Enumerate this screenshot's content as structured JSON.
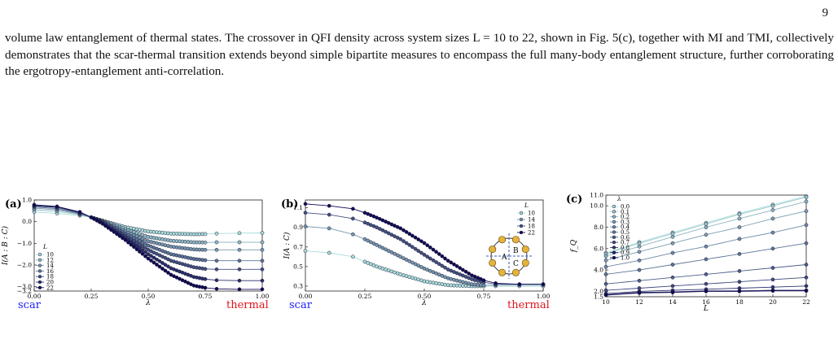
{
  "page_number": "9",
  "paragraph": "volume law entanglement of thermal states. The crossover in QFI density across system sizes L = 10 to 22, shown in Fig. 5(c), together with MI and TMI, collectively demonstrates that the scar-thermal transition extends beyond simple bipartite measures to encompass the full many-body entanglement structure, further corroborating the ergotropy-entanglement anti-correlation.",
  "colors": {
    "scar": "#1a1aff",
    "thermal": "#e0151c",
    "series_light": "#a9ddd9",
    "series_dark": "#100a52"
  },
  "panel_a": {
    "label": "(a)",
    "ylabel": "I(A : B : C)",
    "xlabel": "λ",
    "left_text": "scar",
    "right_text": "thermal",
    "legend_title": "L",
    "yticks": [
      "1.0",
      "0.0",
      "−1.0",
      "−2.0",
      "−3.0",
      "−3.2"
    ],
    "xticks": [
      "0.00",
      "0.25",
      "0.50",
      "0.75",
      "1.00"
    ]
  },
  "panel_b": {
    "label": "(b)",
    "ylabel": "I(A : C)",
    "xlabel": "λ",
    "left_text": "scar",
    "right_text": "thermal",
    "legend_title": "L",
    "yticks": [
      "1.1",
      "0.9",
      "0.7",
      "0.5",
      "0.3"
    ],
    "xticks": [
      "0.00",
      "0.25",
      "0.50",
      "0.75",
      "1.00"
    ],
    "inset_labels": [
      "A",
      "B",
      "C"
    ]
  },
  "panel_c": {
    "label": "(c)",
    "ylabel": "f_Q",
    "xlabel": "L",
    "legend_title": "λ",
    "yticks": [
      "11.0",
      "10.0",
      "8.0",
      "6.0",
      "4.0",
      "2.0",
      "1.5"
    ],
    "xticks": [
      "10",
      "12",
      "14",
      "16",
      "18",
      "20",
      "22"
    ]
  },
  "chart_data": [
    {
      "type": "line",
      "panel": "a",
      "xlabel": "λ",
      "ylabel": "I(A : B : C)",
      "xlim": [
        0,
        1
      ],
      "ylim": [
        -3.2,
        1.0
      ],
      "legend_title": "L",
      "legend_position": "bottom-left",
      "series": [
        {
          "name": "10",
          "x": [
            0,
            0.1,
            0.2,
            0.25,
            0.3,
            0.4,
            0.5,
            0.6,
            0.7,
            0.75,
            0.8,
            0.9,
            1.0
          ],
          "values": [
            0.45,
            0.38,
            0.28,
            0.2,
            0.05,
            -0.25,
            -0.45,
            -0.55,
            -0.58,
            -0.57,
            -0.55,
            -0.53,
            -0.52
          ]
        },
        {
          "name": "12",
          "x": [
            0,
            0.1,
            0.2,
            0.25,
            0.3,
            0.4,
            0.5,
            0.6,
            0.7,
            0.75,
            0.8,
            0.9,
            1.0
          ],
          "values": [
            0.55,
            0.48,
            0.32,
            0.2,
            0.03,
            -0.35,
            -0.7,
            -0.88,
            -0.95,
            -0.96,
            -0.95,
            -0.95,
            -0.95
          ]
        },
        {
          "name": "14",
          "x": [
            0,
            0.1,
            0.2,
            0.25,
            0.3,
            0.4,
            0.5,
            0.6,
            0.7,
            0.75,
            0.8,
            0.9,
            1.0
          ],
          "values": [
            0.62,
            0.55,
            0.35,
            0.2,
            0.0,
            -0.45,
            -0.9,
            -1.15,
            -1.28,
            -1.3,
            -1.3,
            -1.3,
            -1.3
          ]
        },
        {
          "name": "16",
          "x": [
            0,
            0.1,
            0.2,
            0.25,
            0.3,
            0.4,
            0.5,
            0.6,
            0.7,
            0.75,
            0.8,
            0.9,
            1.0
          ],
          "values": [
            0.68,
            0.6,
            0.38,
            0.2,
            -0.02,
            -0.55,
            -1.1,
            -1.5,
            -1.72,
            -1.78,
            -1.8,
            -1.8,
            -1.8
          ]
        },
        {
          "name": "18",
          "x": [
            0,
            0.1,
            0.2,
            0.25,
            0.3,
            0.4,
            0.5,
            0.6,
            0.7,
            0.75,
            0.8,
            0.9,
            1.0
          ],
          "values": [
            0.72,
            0.65,
            0.4,
            0.2,
            -0.05,
            -0.65,
            -1.3,
            -1.8,
            -2.1,
            -2.18,
            -2.2,
            -2.2,
            -2.2
          ]
        },
        {
          "name": "20",
          "x": [
            0,
            0.1,
            0.2,
            0.25,
            0.3,
            0.4,
            0.5,
            0.6,
            0.7,
            0.75,
            0.8,
            0.9,
            1.0
          ],
          "values": [
            0.75,
            0.68,
            0.42,
            0.2,
            -0.08,
            -0.75,
            -1.5,
            -2.15,
            -2.55,
            -2.65,
            -2.7,
            -2.72,
            -2.72
          ]
        },
        {
          "name": "22",
          "x": [
            0,
            0.1,
            0.2,
            0.25,
            0.3,
            0.4,
            0.5,
            0.6,
            0.7,
            0.75,
            0.8,
            0.9,
            1.0
          ],
          "values": [
            0.78,
            0.7,
            0.45,
            0.2,
            -0.1,
            -0.85,
            -1.7,
            -2.45,
            -2.95,
            -3.05,
            -3.1,
            -3.12,
            -3.12
          ]
        }
      ]
    },
    {
      "type": "line",
      "panel": "b",
      "xlabel": "λ",
      "ylabel": "I(A : C)",
      "xlim": [
        0,
        1
      ],
      "ylim": [
        0.25,
        1.18
      ],
      "legend_title": "L",
      "legend_position": "top-right",
      "series": [
        {
          "name": "10",
          "x": [
            0,
            0.1,
            0.2,
            0.25,
            0.3,
            0.4,
            0.5,
            0.6,
            0.7,
            0.75,
            0.8,
            0.9,
            1.0
          ],
          "values": [
            0.66,
            0.64,
            0.6,
            0.55,
            0.5,
            0.42,
            0.35,
            0.31,
            0.3,
            0.3,
            0.3,
            0.3,
            0.3
          ]
        },
        {
          "name": "14",
          "x": [
            0,
            0.1,
            0.2,
            0.25,
            0.3,
            0.4,
            0.5,
            0.6,
            0.7,
            0.75,
            0.8,
            0.9,
            1.0
          ],
          "values": [
            0.91,
            0.89,
            0.83,
            0.78,
            0.72,
            0.6,
            0.48,
            0.38,
            0.32,
            0.31,
            0.31,
            0.31,
            0.31
          ]
        },
        {
          "name": "18",
          "x": [
            0,
            0.1,
            0.2,
            0.25,
            0.3,
            0.4,
            0.5,
            0.6,
            0.7,
            0.75,
            0.8,
            0.9,
            1.0
          ],
          "values": [
            1.05,
            1.03,
            0.99,
            0.95,
            0.9,
            0.78,
            0.62,
            0.47,
            0.37,
            0.34,
            0.32,
            0.32,
            0.32
          ]
        },
        {
          "name": "22",
          "x": [
            0,
            0.1,
            0.2,
            0.25,
            0.3,
            0.4,
            0.5,
            0.6,
            0.7,
            0.75,
            0.8,
            0.9,
            1.0
          ],
          "values": [
            1.14,
            1.12,
            1.09,
            1.05,
            1.0,
            0.89,
            0.74,
            0.56,
            0.41,
            0.36,
            0.33,
            0.32,
            0.32
          ]
        }
      ]
    },
    {
      "type": "line",
      "panel": "c",
      "xlabel": "L",
      "ylabel": "f_Q",
      "xlim": [
        10,
        22
      ],
      "ylim": [
        1.5,
        11.0
      ],
      "legend_title": "λ",
      "legend_position": "top-left",
      "x": [
        10,
        12,
        14,
        16,
        18,
        20,
        22
      ],
      "series": [
        {
          "name": "0.0",
          "values": [
            5.6,
            6.6,
            7.5,
            8.4,
            9.3,
            10.1,
            10.9
          ]
        },
        {
          "name": "0.1",
          "values": [
            5.5,
            6.5,
            7.4,
            8.3,
            9.2,
            10.0,
            10.8
          ]
        },
        {
          "name": "0.2",
          "values": [
            5.3,
            6.2,
            7.1,
            8.0,
            8.8,
            9.6,
            10.4
          ]
        },
        {
          "name": "0.3",
          "values": [
            4.9,
            5.7,
            6.5,
            7.3,
            8.0,
            8.8,
            9.5
          ]
        },
        {
          "name": "0.4",
          "values": [
            4.3,
            4.9,
            5.6,
            6.2,
            6.9,
            7.5,
            8.2
          ]
        },
        {
          "name": "0.5",
          "values": [
            3.6,
            4.0,
            4.5,
            5.0,
            5.5,
            6.0,
            6.5
          ]
        },
        {
          "name": "0.6",
          "values": [
            2.7,
            3.0,
            3.3,
            3.6,
            3.9,
            4.2,
            4.5
          ]
        },
        {
          "name": "0.7",
          "values": [
            2.1,
            2.3,
            2.5,
            2.7,
            2.9,
            3.1,
            3.3
          ]
        },
        {
          "name": "0.8",
          "values": [
            1.8,
            2.0,
            2.1,
            2.2,
            2.3,
            2.4,
            2.5
          ]
        },
        {
          "name": "0.9",
          "values": [
            1.7,
            1.9,
            1.95,
            2.05,
            2.05,
            2.1,
            2.1
          ]
        },
        {
          "name": "1.0",
          "values": [
            1.65,
            1.85,
            1.9,
            2.0,
            2.0,
            2.05,
            2.05
          ]
        }
      ]
    }
  ]
}
